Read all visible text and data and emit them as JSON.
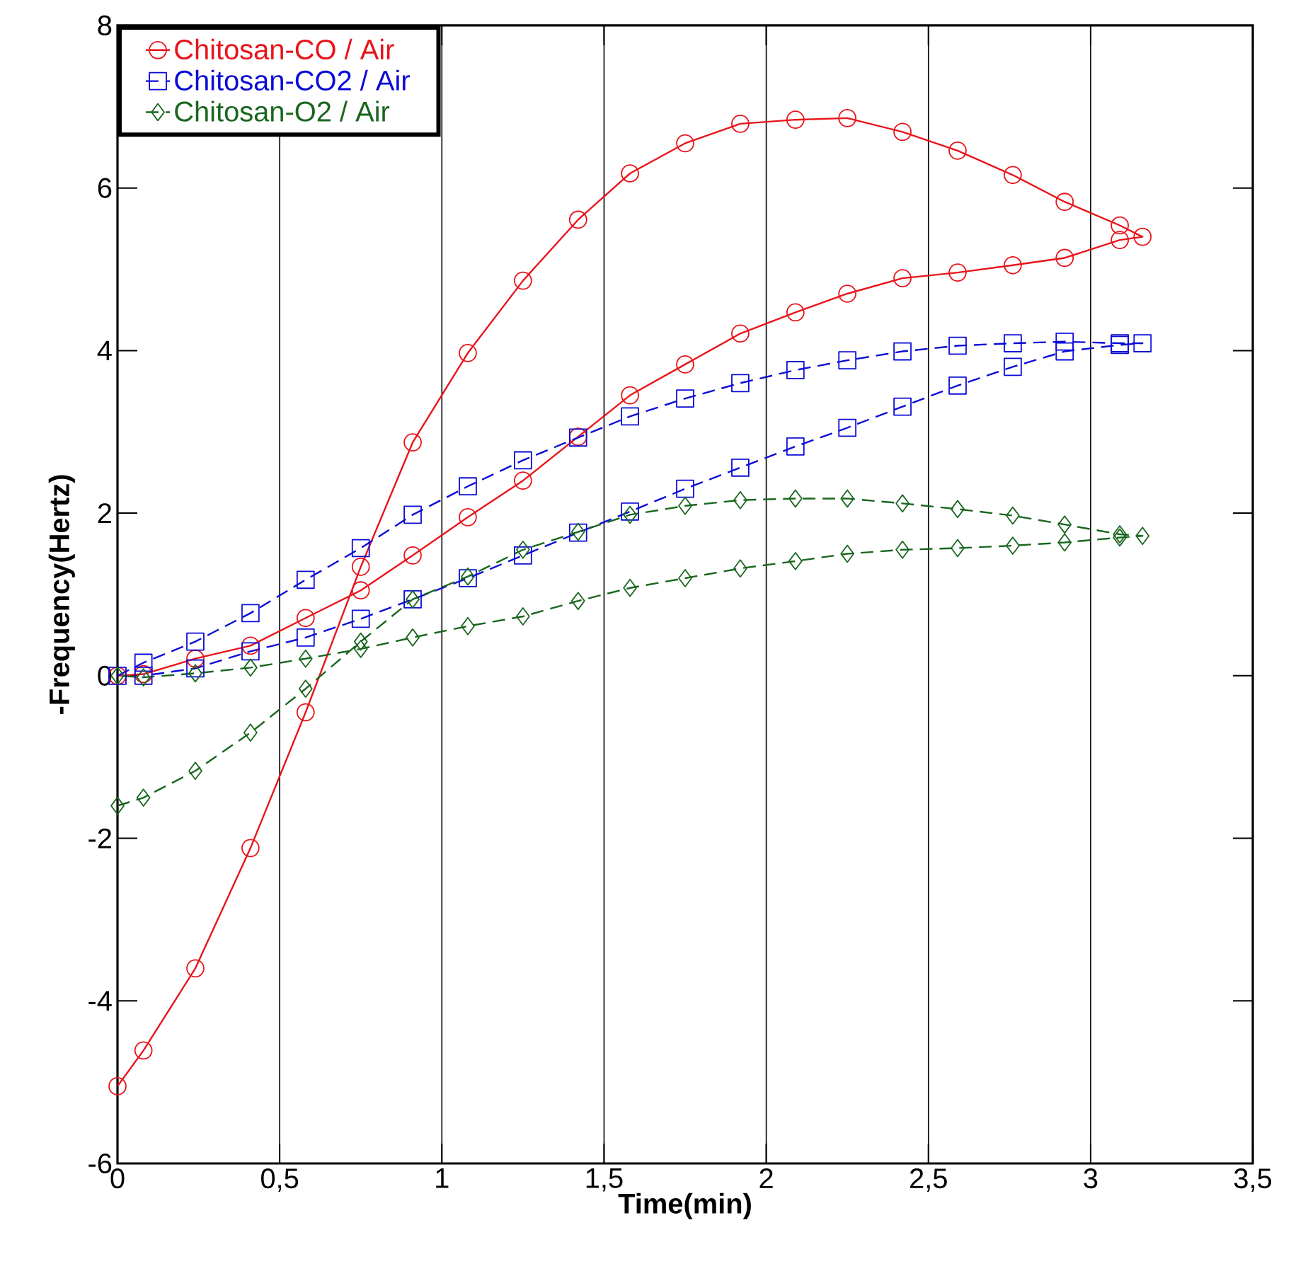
{
  "chart_data": {
    "type": "line",
    "xlabel": "Time(min)",
    "ylabel": "-Frequency(Hertz)",
    "xlim": [
      0,
      3.5
    ],
    "ylim": [
      -6,
      8
    ],
    "xticks": [
      0,
      {
        "value": 0.5,
        "label": "0,5"
      },
      1,
      {
        "value": 1.5,
        "label": "1,5"
      },
      2,
      {
        "value": 2.5,
        "label": "2,5"
      },
      3,
      {
        "value": 3.5,
        "label": "3,5"
      }
    ],
    "yticks": [
      -6,
      -4,
      -2,
      0,
      2,
      4,
      6,
      8
    ],
    "grid": "x",
    "legend": "top left",
    "series": [
      {
        "name": "Chitosan-CO / Air",
        "color": "#e8141a",
        "marker": "circle",
        "line_style": "solid",
        "x": [
          0.0,
          0.08,
          0.24,
          0.41,
          0.58,
          0.75,
          0.91,
          1.08,
          1.25,
          1.42,
          1.58,
          1.75,
          1.92,
          2.09,
          2.25,
          2.42,
          2.59,
          2.76,
          2.92,
          3.09,
          3.16,
          3.09,
          2.92,
          2.76,
          2.59,
          2.42,
          2.25,
          2.09,
          1.92,
          1.75,
          1.58,
          1.42,
          1.25,
          1.08,
          0.91,
          0.75,
          0.58,
          0.41,
          0.24,
          0.08,
          0.0
        ],
        "values": [
          -5.05,
          -4.61,
          -3.6,
          -2.12,
          -0.45,
          1.34,
          2.87,
          3.97,
          4.86,
          5.61,
          6.18,
          6.55,
          6.79,
          6.84,
          6.86,
          6.69,
          6.46,
          6.16,
          5.83,
          5.54,
          5.4,
          5.36,
          5.14,
          5.05,
          4.96,
          4.89,
          4.7,
          4.47,
          4.21,
          3.83,
          3.45,
          2.94,
          2.4,
          1.95,
          1.48,
          1.05,
          0.71,
          0.37,
          0.21,
          0.02,
          0.0
        ]
      },
      {
        "name": "Chitosan-CO2 / Air",
        "color": "#0b0bd6",
        "marker": "square",
        "line_style": "dashed",
        "x": [
          0.0,
          0.08,
          0.24,
          0.41,
          0.58,
          0.75,
          0.91,
          1.08,
          1.25,
          1.42,
          1.58,
          1.75,
          1.92,
          2.09,
          2.25,
          2.42,
          2.59,
          2.76,
          2.92,
          3.09,
          3.16,
          3.09,
          2.92,
          2.76,
          2.59,
          2.42,
          2.25,
          2.09,
          1.92,
          1.75,
          1.58,
          1.42,
          1.25,
          1.08,
          0.91,
          0.75,
          0.58,
          0.41,
          0.24,
          0.08
        ],
        "values": [
          0.0,
          0.16,
          0.42,
          0.77,
          1.18,
          1.57,
          1.98,
          2.33,
          2.65,
          2.93,
          3.19,
          3.41,
          3.6,
          3.76,
          3.88,
          3.99,
          4.06,
          4.09,
          4.11,
          4.09,
          4.09,
          4.07,
          3.99,
          3.8,
          3.57,
          3.31,
          3.05,
          2.82,
          2.56,
          2.3,
          2.02,
          1.76,
          1.48,
          1.2,
          0.94,
          0.7,
          0.47,
          0.3,
          0.09,
          0.0
        ]
      },
      {
        "name": "Chitosan-O2 / Air",
        "color": "#19661e",
        "marker": "diamond",
        "line_style": "dashed",
        "x": [
          0.0,
          0.08,
          0.24,
          0.41,
          0.58,
          0.75,
          0.91,
          1.08,
          1.25,
          1.42,
          1.58,
          1.75,
          1.92,
          2.09,
          2.25,
          2.42,
          2.59,
          2.76,
          2.92,
          3.09,
          3.16,
          3.09,
          2.92,
          2.76,
          2.59,
          2.42,
          2.25,
          2.09,
          1.92,
          1.75,
          1.58,
          1.42,
          1.25,
          1.08,
          0.91,
          0.75,
          0.58,
          0.41,
          0.24,
          0.08,
          0.0
        ],
        "values": [
          -1.6,
          -1.5,
          -1.17,
          -0.7,
          -0.16,
          0.42,
          0.94,
          1.22,
          1.55,
          1.77,
          1.98,
          2.09,
          2.16,
          2.18,
          2.18,
          2.12,
          2.05,
          1.97,
          1.86,
          1.74,
          1.72,
          1.7,
          1.64,
          1.6,
          1.57,
          1.55,
          1.5,
          1.41,
          1.32,
          1.2,
          1.08,
          0.92,
          0.73,
          0.61,
          0.47,
          0.33,
          0.21,
          0.1,
          0.03,
          -0.02,
          0.0
        ]
      }
    ]
  }
}
